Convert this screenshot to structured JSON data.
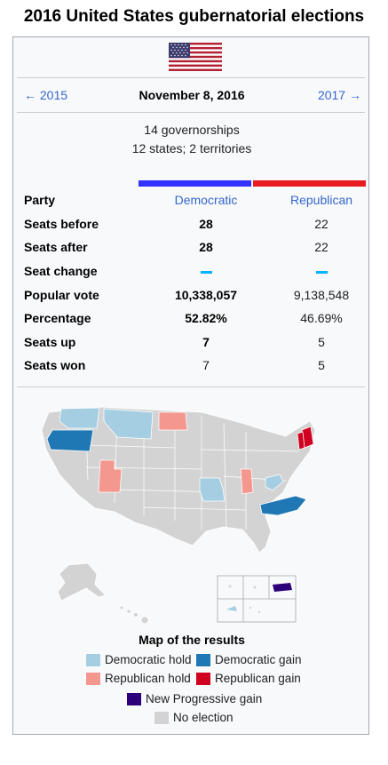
{
  "title": "2016 United States gubernatorial elections",
  "nav": {
    "prev": "← 2015",
    "date": "November 8, 2016",
    "next": "2017 →"
  },
  "summary": {
    "line1": "14 governorships",
    "line2": "12 states; 2 territories"
  },
  "parties": {
    "dem": "Democratic",
    "rep": "Republican",
    "dem_color": "#3333ff",
    "rep_color": "#e81b23"
  },
  "rows": [
    {
      "label": "Party"
    },
    {
      "label": "Seats before",
      "dem": "28",
      "rep": "22"
    },
    {
      "label": "Seats after",
      "dem": "28",
      "rep": "22"
    },
    {
      "label": "Seat change"
    },
    {
      "label": "Popular vote",
      "dem": "10,338,057",
      "rep": "9,138,548"
    },
    {
      "label": "Percentage",
      "dem": "52.82%",
      "rep": "46.69%"
    },
    {
      "label": "Seats up",
      "dem": "7",
      "rep": "5"
    },
    {
      "label": "Seats won",
      "dem": "7",
      "rep": "5"
    }
  ],
  "map": {
    "caption": "Map of the results",
    "colors": {
      "dem_hold": "#a5cee3",
      "dem_gain": "#1f78b4",
      "rep_hold": "#f4978e",
      "rep_gain": "#d00020",
      "np_gain": "#2c007a",
      "none": "#d3d3d3"
    }
  },
  "legend": {
    "dem_hold": "Democratic hold",
    "dem_gain": "Democratic gain",
    "rep_hold": "Republican hold",
    "rep_gain": "Republican gain",
    "np_gain": "New Progressive gain",
    "none": "No election"
  }
}
